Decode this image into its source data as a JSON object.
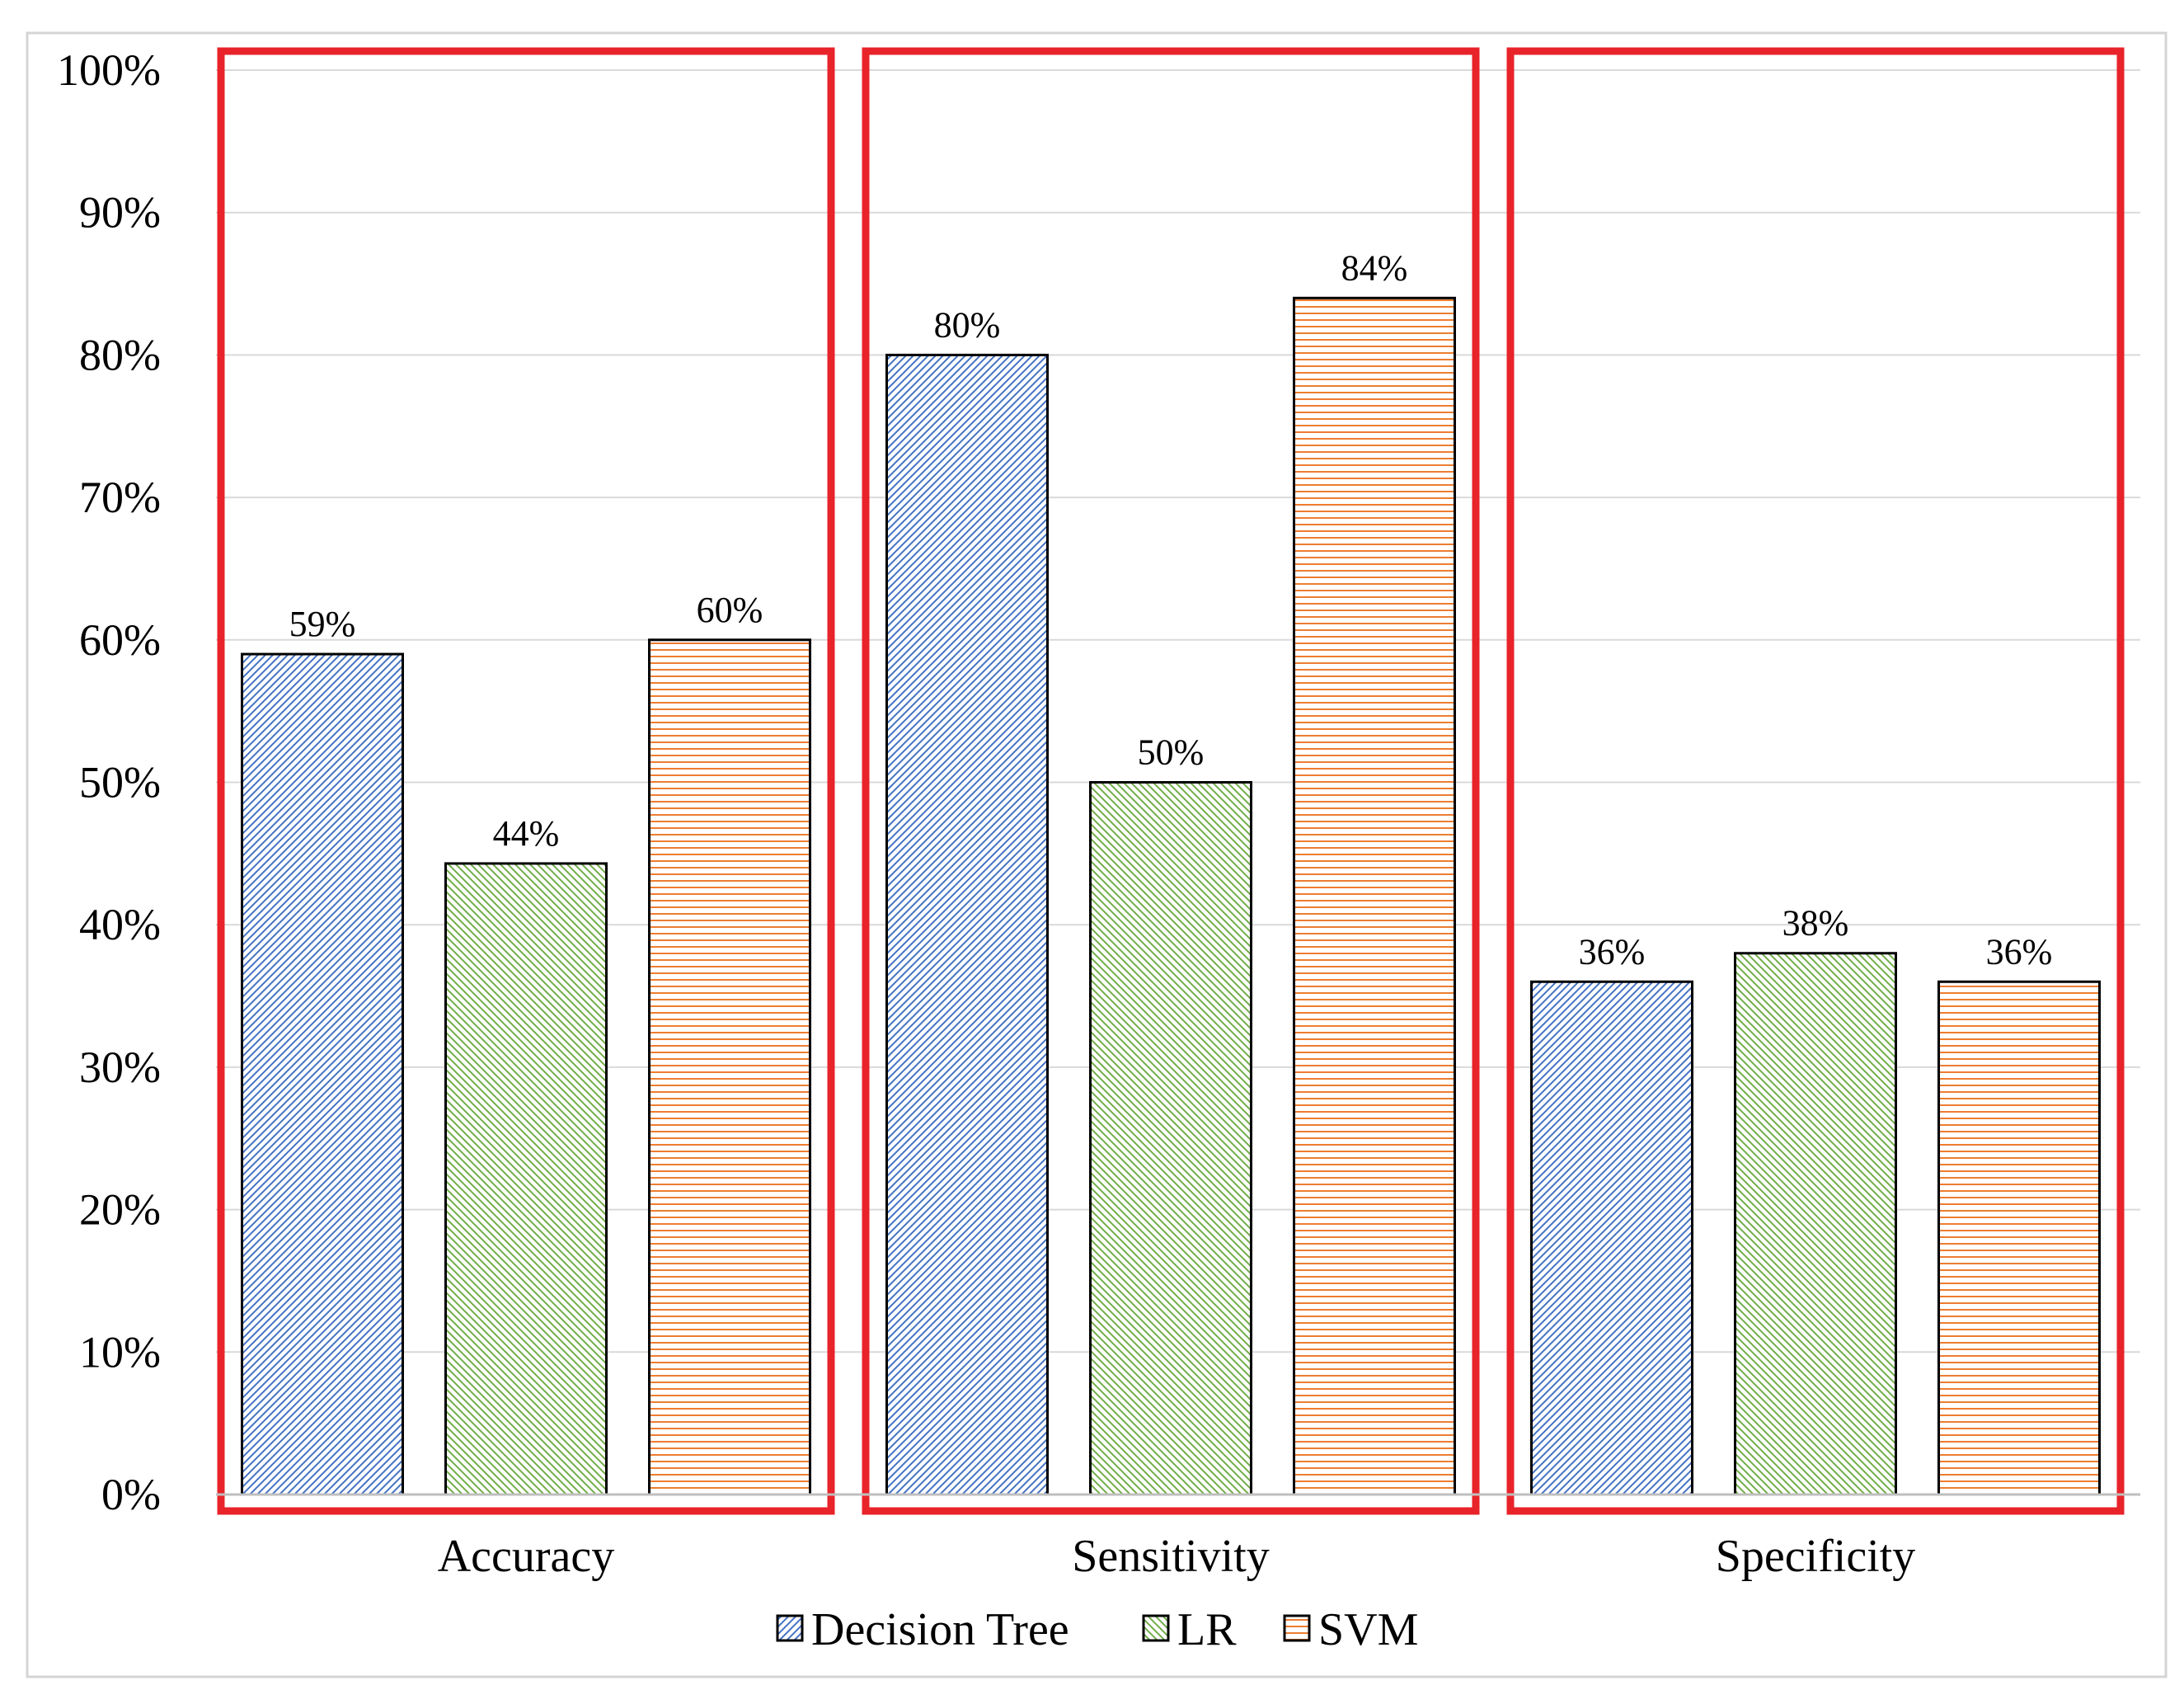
{
  "chart_data": {
    "type": "bar",
    "title": "",
    "xlabel": "",
    "ylabel": "",
    "ylim": [
      0,
      100
    ],
    "y_tick_labels": [
      "0%",
      "10%",
      "20%",
      "30%",
      "40%",
      "50%",
      "60%",
      "70%",
      "80%",
      "90%",
      "100%"
    ],
    "y_ticks": [
      0,
      10,
      20,
      30,
      40,
      50,
      60,
      70,
      80,
      90,
      100
    ],
    "grid": true,
    "legend_position": "bottom-center",
    "categories": [
      "Accuracy",
      "Sensitivity",
      "Specificity"
    ],
    "series": [
      {
        "name": "Decision Tree",
        "values": [
          59,
          80,
          36
        ],
        "labels": [
          "59%",
          "80%",
          "36%"
        ],
        "color": "#4472c4",
        "pattern": "diagonal-up"
      },
      {
        "name": "LR",
        "values": [
          44.3,
          50,
          38
        ],
        "labels": [
          "44%",
          "50%",
          "38%"
        ],
        "color": "#70ad47",
        "pattern": "diagonal-down"
      },
      {
        "name": "SVM",
        "values": [
          60,
          84,
          36
        ],
        "labels": [
          "60%",
          "84%",
          "36%"
        ],
        "color": "#ed7d31",
        "pattern": "horizontal"
      }
    ],
    "highlight_boxes": {
      "color": "#e8232a",
      "groups": [
        "Accuracy",
        "Sensitivity",
        "Specificity"
      ]
    }
  }
}
